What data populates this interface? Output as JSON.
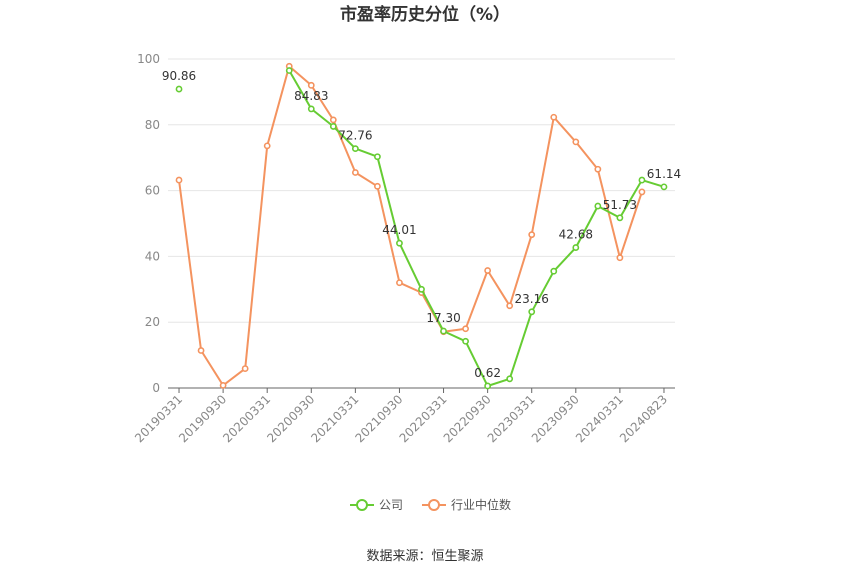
{
  "chart_data": {
    "type": "line",
    "title": "市盈率历史分位（%）",
    "xlabel": "",
    "ylabel": "",
    "ylim": [
      0,
      100
    ],
    "yticks": [
      0,
      20,
      40,
      60,
      80,
      100
    ],
    "grid": "horizontal",
    "legend_position": "bottom",
    "xtick_labels": [
      "20190331",
      "20190930",
      "20200331",
      "20200930",
      "20210331",
      "20210930",
      "20220331",
      "20220930",
      "20230331",
      "20230930",
      "20240331",
      "20240823"
    ],
    "x": [
      "20190331",
      "20190630",
      "20190930",
      "20191231",
      "20200331",
      "20200630",
      "20200930",
      "20201231",
      "20210331",
      "20210630",
      "20210930",
      "20211231",
      "20220331",
      "20220630",
      "20220930",
      "20221231",
      "20230331",
      "20230630",
      "20230930",
      "20231231",
      "20240331",
      "20240630",
      "20240823"
    ],
    "series": [
      {
        "name": "公司",
        "color": "#66cc33",
        "values": [
          90.86,
          null,
          null,
          null,
          null,
          96.5,
          84.83,
          79.5,
          72.76,
          70.3,
          44.01,
          30.0,
          17.3,
          14.2,
          0.62,
          2.8,
          23.16,
          35.5,
          42.68,
          55.3,
          51.73,
          63.2,
          61.14
        ]
      },
      {
        "name": "行业中位数",
        "color": "#f4935f",
        "values": [
          63.2,
          11.4,
          0.8,
          5.9,
          73.6,
          97.8,
          92.0,
          81.5,
          65.5,
          61.3,
          32.0,
          29.0,
          17.1,
          18.0,
          35.7,
          25.0,
          46.6,
          82.3,
          74.8,
          66.5,
          39.6,
          59.6,
          null
        ]
      }
    ],
    "data_labels": [
      {
        "series": "公司",
        "x": "20190331",
        "text": "90.86"
      },
      {
        "series": "公司",
        "x": "20200930",
        "text": "84.83"
      },
      {
        "series": "公司",
        "x": "20210331",
        "text": "72.76"
      },
      {
        "series": "公司",
        "x": "20210930",
        "text": "44.01"
      },
      {
        "series": "公司",
        "x": "20220331",
        "text": "17.30"
      },
      {
        "series": "公司",
        "x": "20220930",
        "text": "0.62"
      },
      {
        "series": "公司",
        "x": "20230331",
        "text": "23.16"
      },
      {
        "series": "公司",
        "x": "20230930",
        "text": "42.68"
      },
      {
        "series": "公司",
        "x": "20240331",
        "text": "51.73"
      },
      {
        "series": "公司",
        "x": "20240823",
        "text": "61.14"
      }
    ],
    "source": "数据来源：恒生聚源"
  }
}
